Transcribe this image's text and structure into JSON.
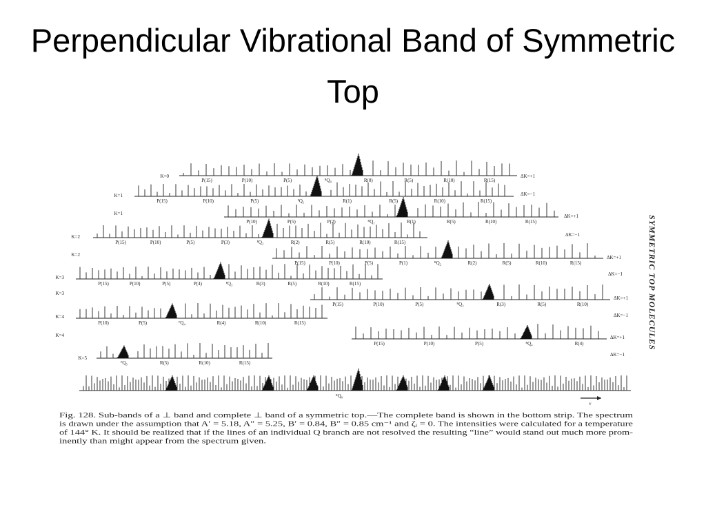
{
  "title": "Perpendicular Vibrational Band of Symmetric Top",
  "figure": {
    "strips": [
      {
        "k_label": "K=0",
        "dk_label": "ΔK=+1",
        "labels": [
          "P(15)",
          "P(10)",
          "P(5)",
          "ᴿQ₀",
          "R(0)",
          "R(5)",
          "R(10)",
          "R(15)"
        ]
      },
      {
        "k_label": "K=1",
        "dk_label": "ΔK=−1",
        "labels": [
          "P(15)",
          "P(10)",
          "P(5)",
          "ᴾQ₁",
          "R(1)",
          "R(5)",
          "R(10)",
          "R(15)"
        ]
      },
      {
        "k_label": "K=1",
        "dk_label": "ΔK=+1",
        "labels": [
          "P(10)",
          "P(5)",
          "P(2)",
          "ᴿQ₁",
          "R(1)",
          "R(5)",
          "R(10)",
          "R(15)"
        ]
      },
      {
        "k_label": "K=2",
        "dk_label": "ΔK=−1",
        "labels": [
          "P(15)",
          "P(10)",
          "P(5)",
          "P(3)",
          "ᴾQ₂",
          "R(2)",
          "R(5)",
          "R(10)",
          "R(15)"
        ]
      },
      {
        "k_label": "K=2",
        "dk_label": "ΔK=+1",
        "labels": [
          "P(15)",
          "P(10)",
          "P(5)",
          "P(1)",
          "ᴿQ₂",
          "R(2)",
          "R(5)",
          "R(10)",
          "R(15)"
        ]
      },
      {
        "k_label": "K=3",
        "dk_label": "ΔK=−1",
        "labels": [
          "P(15)",
          "P(10)",
          "P(5)",
          "P(4)",
          "ᴾQ₃",
          "R(3)",
          "R(5)",
          "R(10)",
          "R(15)"
        ]
      },
      {
        "k_label": "K=3",
        "dk_label": "ΔK=+1",
        "labels": [
          "P(15)",
          "P(10)",
          "P(5)",
          "ᴿQ₃",
          "R(3)",
          "R(5)",
          "R(10)"
        ]
      },
      {
        "k_label": "K=4",
        "dk_label": "ΔK=−1",
        "labels": [
          "P(10)",
          "P(5)",
          "ᴾQ₄",
          "R(4)",
          "R(10)",
          "R(15)"
        ]
      },
      {
        "k_label": "K=4",
        "dk_label": "ΔK=+1",
        "labels": [
          "P(15)",
          "P(10)",
          "P(5)",
          "ᴿQ₄",
          "R(4)"
        ]
      },
      {
        "k_label": "K=5",
        "dk_label": "ΔK=−1",
        "labels": [
          "ᴾQ₅",
          "R(5)",
          "R(10)",
          "R(15)"
        ]
      }
    ],
    "bottom_q_label": "ᴿQ₀",
    "arrow_label": "ν",
    "side_label": "SYMMETRIC TOP MOLECULES",
    "caption_lines": [
      "Fig. 128.   Sub-bands of a ⊥ band and complete ⊥ band of a symmetric top.—The complete band is shown in the bottom strip.   The spectrum",
      "is drawn under the assumption that A′ = 5.18, A″ = 5.25, B′ = 0.84, B″ = 0.85 cm⁻¹ and ζᵢ = 0.   The intensities were calculated for a temperature",
      "of 144° K.   It should be realized that if the lines of an individual Q branch are not resolved the resulting “line” would stand out much more prom-",
      "inently than might appear from the spectrum given."
    ]
  }
}
